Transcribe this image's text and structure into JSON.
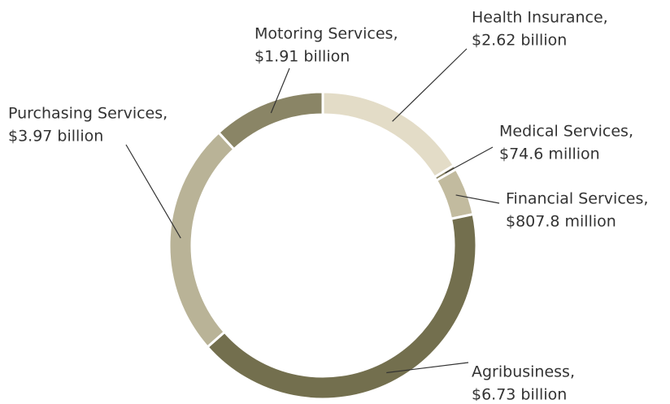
{
  "chart_data": {
    "type": "donut",
    "categories": [
      "Health Insurance,",
      "Medical Services,",
      "Financial Services,",
      "Agribusiness,",
      "Purchasing Services,",
      "Motoring Services,"
    ],
    "values": [
      2620000000,
      74600000,
      807800000,
      6730000000,
      3970000000,
      1910000000
    ],
    "value_labels": [
      "$2.62 billion",
      "$74.6 million",
      "$807.8 million",
      "$6.73 billion",
      "$3.97 billion",
      "$1.91 billion"
    ],
    "colors": [
      "#e3dcc7",
      "#8a8466",
      "#c2bb9f",
      "#736f4e",
      "#b9b397",
      "#8a8566"
    ]
  }
}
